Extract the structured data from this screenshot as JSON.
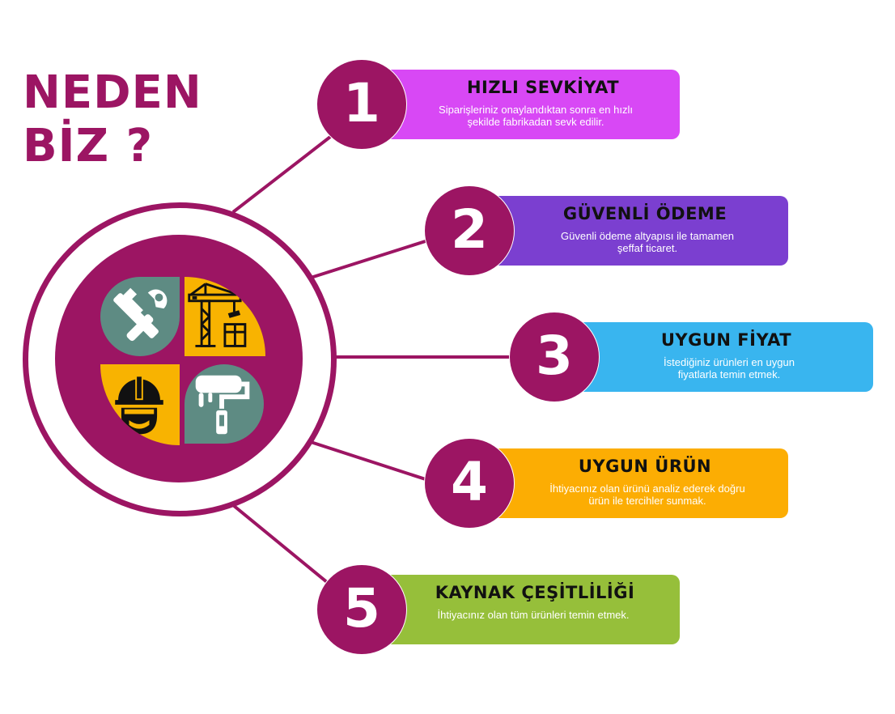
{
  "headline": {
    "line1": "NEDEN",
    "line2": "BİZ ?"
  },
  "colors": {
    "brand": "#9c1563",
    "card1": "#d848f5",
    "card2": "#7b3fd0",
    "card3": "#39b5ef",
    "card4": "#fcad03",
    "card5": "#96bf3a",
    "quad_teal": "#5e8b83",
    "quad_yellow": "#f8b301"
  },
  "hub": {
    "icons": [
      "tools-icon",
      "construction-crane-icon",
      "hard-hat-worker-icon",
      "paint-roller-icon"
    ]
  },
  "items": [
    {
      "number": "1",
      "title": "HIZLI SEVKİYAT",
      "description": "Siparişleriniz onaylandıktan sonra en hızlı şekilde fabrikadan sevk edilir."
    },
    {
      "number": "2",
      "title": "GÜVENLİ ÖDEME",
      "description": "Güvenli ödeme altyapısı ile tamamen şeffaf ticaret."
    },
    {
      "number": "3",
      "title": "UYGUN FİYAT",
      "description": "İstediğiniz ürünleri en uygun fiyatlarla temin etmek."
    },
    {
      "number": "4",
      "title": "UYGUN ÜRÜN",
      "description": "İhtiyacınız olan ürünü analiz ederek doğru ürün ile tercihler sunmak."
    },
    {
      "number": "5",
      "title": "KAYNAK ÇEŞİTLİLİĞİ",
      "description": "İhtiyacınız olan tüm ürünleri temin etmek."
    }
  ]
}
